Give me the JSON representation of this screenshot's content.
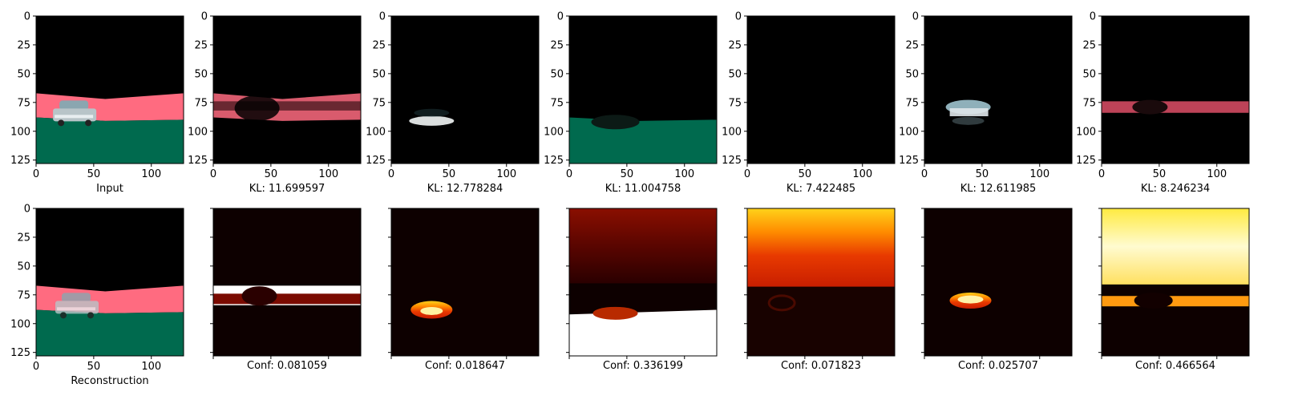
{
  "figure": {
    "top_row": [
      {
        "caption": "Input",
        "image": "input-scene"
      },
      {
        "caption": "KL: 11.699597",
        "image": "slot-road-band"
      },
      {
        "caption": "KL: 12.778284",
        "image": "slot-car-bottom"
      },
      {
        "caption": "KL: 11.004758",
        "image": "slot-ground"
      },
      {
        "caption": "KL: 7.422485",
        "image": "slot-empty"
      },
      {
        "caption": "KL: 12.611985",
        "image": "slot-car-top"
      },
      {
        "caption": "KL: 8.246234",
        "image": "slot-road-right"
      }
    ],
    "bottom_row": [
      {
        "caption": "Reconstruction",
        "image": "reconstruction-scene"
      },
      {
        "caption": "Conf: 0.081059",
        "image": "conf-map-1"
      },
      {
        "caption": "Conf: 0.018647",
        "image": "conf-map-2"
      },
      {
        "caption": "Conf: 0.336199",
        "image": "conf-map-3"
      },
      {
        "caption": "Conf: 0.071823",
        "image": "conf-map-4"
      },
      {
        "caption": "Conf: 0.025707",
        "image": "conf-map-5"
      },
      {
        "caption": "Conf: 0.466564",
        "image": "conf-map-6"
      }
    ]
  },
  "chart_data": {
    "type": "heatmap",
    "layout": "2 rows x 7 image panels",
    "image_extent": {
      "x": [
        0,
        128
      ],
      "y": [
        0,
        128
      ]
    },
    "x_ticks": [
      "0",
      "50",
      "100"
    ],
    "y_ticks": [
      "0",
      "25",
      "50",
      "75",
      "100",
      "125"
    ],
    "kl_values": [
      11.699597,
      12.778284,
      11.004758,
      7.422485,
      12.611985,
      8.246234
    ],
    "conf_values": [
      0.081059,
      0.018647,
      0.336199,
      0.071823,
      0.025707,
      0.466564
    ],
    "colormap_confidence": "hot",
    "colors": {
      "sky": "#000000",
      "road": "#ff6b80",
      "ground": "#006a4e",
      "car": "#b8c4c8"
    }
  }
}
